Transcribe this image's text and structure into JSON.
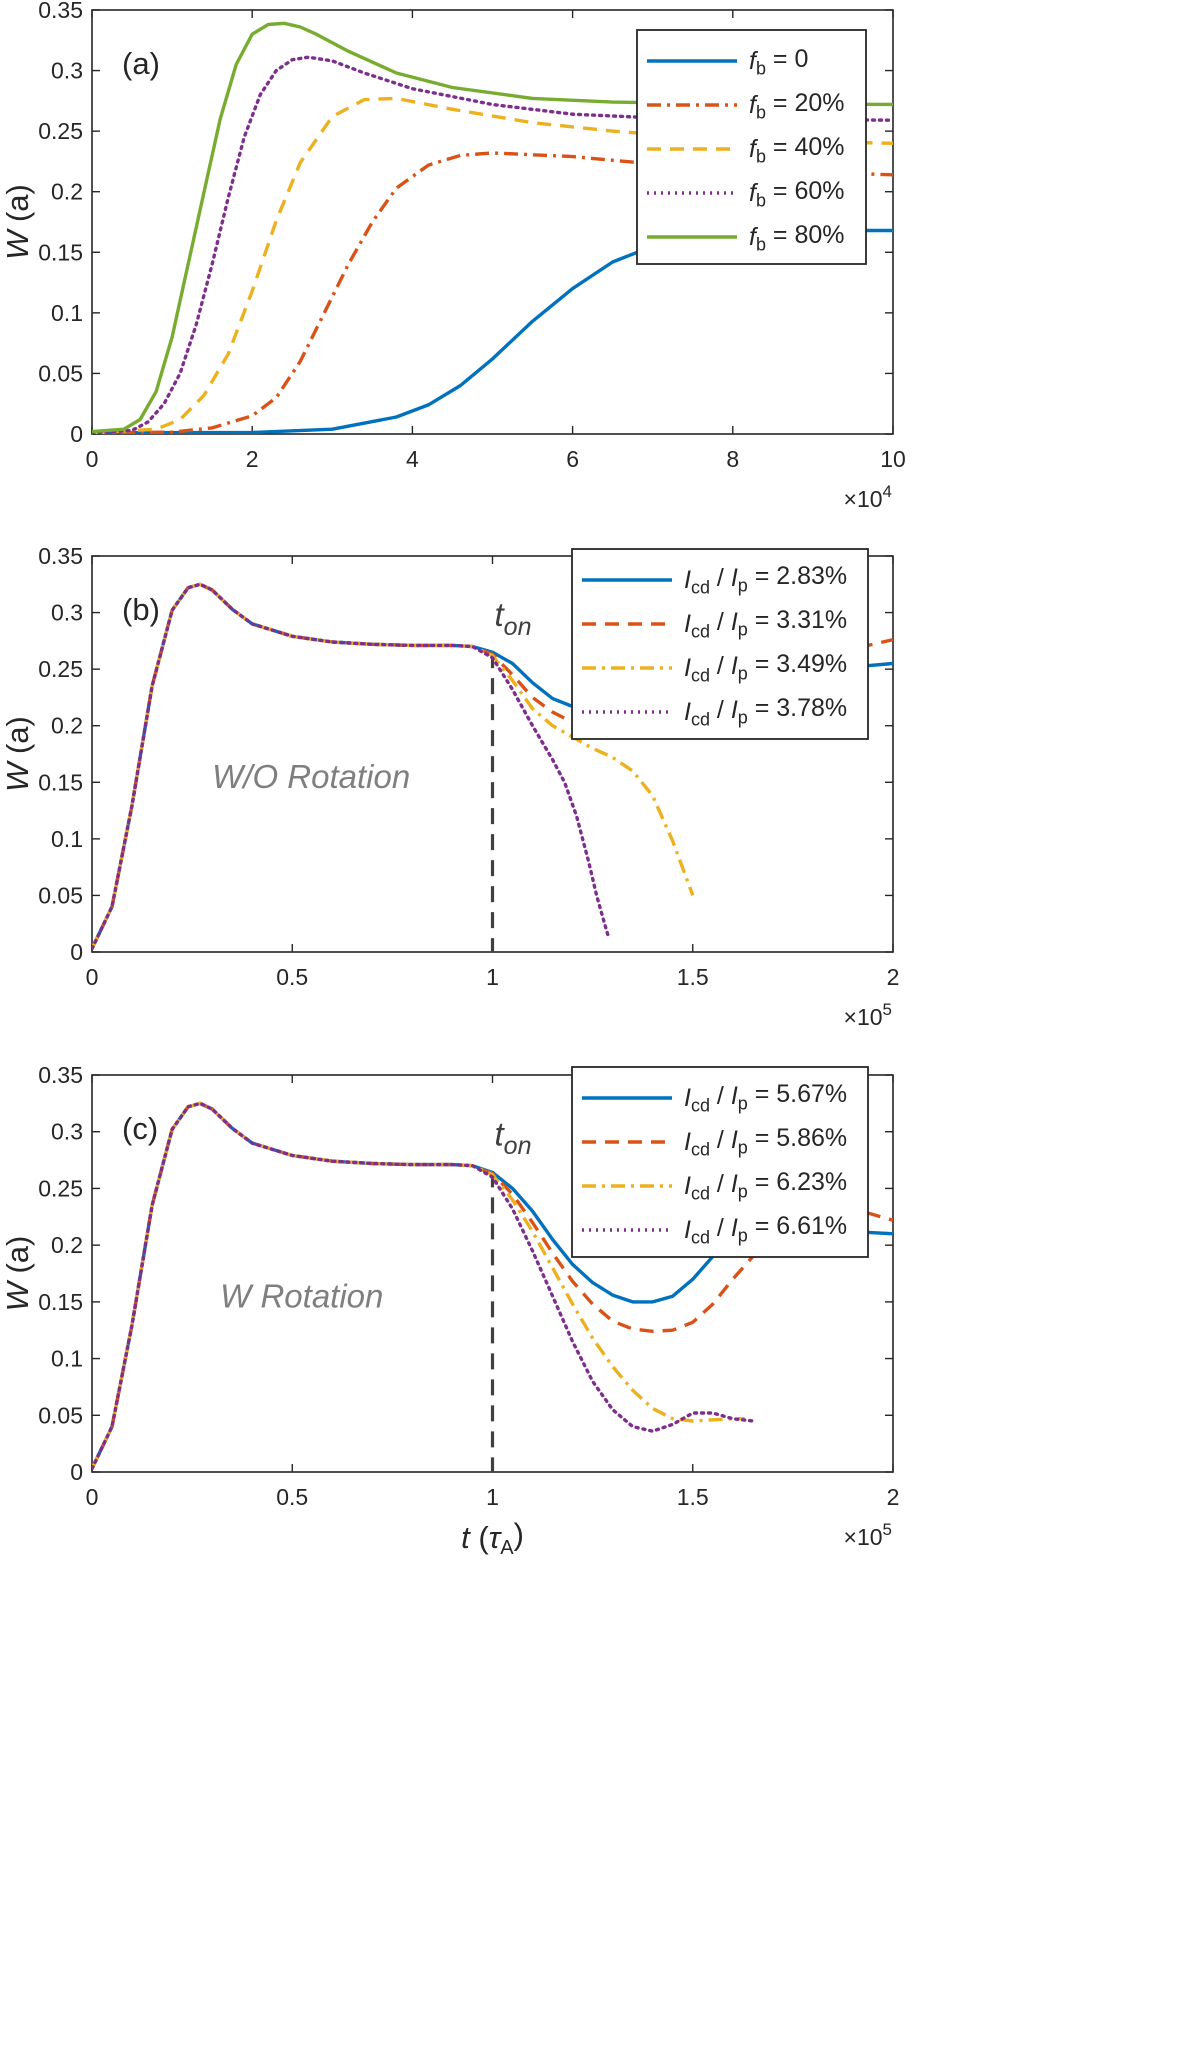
{
  "colors": {
    "blue": "#0072BD",
    "orange": "#D95319",
    "yellow": "#EDB120",
    "purple": "#7E2F8E",
    "green": "#77AC30",
    "marker": "#404040",
    "annotation": "#7f7f7f"
  },
  "chart_data": [
    {
      "type": "line",
      "panel_label": "(a)",
      "ylabel": {
        "sym": "W",
        "rest": " (a)"
      },
      "xlabel": null,
      "x_exponent_label": {
        "base": "×10",
        "exp": "4"
      },
      "xlim": [
        0,
        100000
      ],
      "ylim": [
        0,
        0.35
      ],
      "xticks": [
        0,
        20000,
        40000,
        60000,
        80000,
        100000
      ],
      "xtick_labels": [
        "0",
        "2",
        "4",
        "6",
        "8",
        "10"
      ],
      "yticks": [
        0,
        0.05,
        0.1,
        0.15,
        0.2,
        0.25,
        0.3,
        0.35
      ],
      "ytick_labels": [
        "0",
        "0.05",
        "0.1",
        "0.15",
        "0.2",
        "0.25",
        "0.3",
        "0.35"
      ],
      "legend_position": "top-right",
      "series": [
        {
          "legend": {
            "sym": "f",
            "sub": "b",
            "rest": " = 0"
          },
          "color": "#0072BD",
          "style": "solid",
          "x": [
            0,
            20000,
            30000,
            38000,
            42000,
            46000,
            50000,
            55000,
            60000,
            65000,
            70000,
            75000,
            80000,
            90000,
            100000
          ],
          "y": [
            0.001,
            0.0012,
            0.004,
            0.014,
            0.024,
            0.04,
            0.062,
            0.093,
            0.12,
            0.142,
            0.155,
            0.162,
            0.166,
            0.168,
            0.168
          ]
        },
        {
          "legend": {
            "sym": "f",
            "sub": "b",
            "rest": " = 20%"
          },
          "color": "#D95319",
          "style": "dashdot",
          "x": [
            0,
            10000,
            15000,
            20000,
            23000,
            26000,
            29000,
            32000,
            35000,
            38000,
            42000,
            46000,
            50000,
            60000,
            70000,
            80000,
            90000,
            100000
          ],
          "y": [
            0.001,
            0.0015,
            0.005,
            0.015,
            0.03,
            0.06,
            0.1,
            0.14,
            0.175,
            0.203,
            0.222,
            0.23,
            0.232,
            0.229,
            0.223,
            0.219,
            0.216,
            0.214
          ]
        },
        {
          "legend": {
            "sym": "f",
            "sub": "b",
            "rest": " = 40%"
          },
          "color": "#EDB120",
          "style": "dashed",
          "x": [
            0,
            8000,
            11000,
            14000,
            17000,
            20000,
            23000,
            26000,
            30000,
            34000,
            38000,
            45000,
            55000,
            65000,
            75000,
            85000,
            100000
          ],
          "y": [
            0.001,
            0.004,
            0.012,
            0.032,
            0.066,
            0.118,
            0.176,
            0.224,
            0.262,
            0.276,
            0.277,
            0.268,
            0.257,
            0.25,
            0.245,
            0.242,
            0.24
          ]
        },
        {
          "legend": {
            "sym": "f",
            "sub": "b",
            "rest": " = 60%"
          },
          "color": "#7E2F8E",
          "style": "dotted",
          "x": [
            0,
            5000,
            7000,
            9000,
            11000,
            13000,
            15000,
            17000,
            19000,
            21000,
            23000,
            25000,
            27000,
            30000,
            34000,
            40000,
            50000,
            60000,
            70000,
            80000,
            100000
          ],
          "y": [
            0.001,
            0.003,
            0.01,
            0.025,
            0.05,
            0.09,
            0.14,
            0.195,
            0.245,
            0.28,
            0.3,
            0.309,
            0.311,
            0.308,
            0.298,
            0.285,
            0.272,
            0.264,
            0.261,
            0.26,
            0.259
          ]
        },
        {
          "legend": {
            "sym": "f",
            "sub": "b",
            "rest": " = 80%"
          },
          "color": "#77AC30",
          "style": "solid",
          "x": [
            0,
            4000,
            6000,
            8000,
            10000,
            12000,
            14000,
            16000,
            18000,
            20000,
            22000,
            24000,
            26000,
            28000,
            32000,
            38000,
            45000,
            55000,
            65000,
            75000,
            100000
          ],
          "y": [
            0.002,
            0.004,
            0.012,
            0.035,
            0.08,
            0.14,
            0.2,
            0.26,
            0.305,
            0.33,
            0.338,
            0.339,
            0.336,
            0.33,
            0.316,
            0.298,
            0.286,
            0.277,
            0.274,
            0.273,
            0.272
          ]
        }
      ]
    },
    {
      "type": "line",
      "panel_label": "(b)",
      "ylabel": {
        "sym": "W",
        "rest": " (a)"
      },
      "xlabel": null,
      "x_exponent_label": {
        "base": "×10",
        "exp": "5"
      },
      "xlim": [
        0,
        200000
      ],
      "ylim": [
        0,
        0.35
      ],
      "xticks": [
        0,
        50000,
        100000,
        150000,
        200000
      ],
      "xtick_labels": [
        "0",
        "0.5",
        "1",
        "1.5",
        "2"
      ],
      "yticks": [
        0,
        0.05,
        0.1,
        0.15,
        0.2,
        0.25,
        0.3,
        0.35
      ],
      "ytick_labels": [
        "0",
        "0.05",
        "0.1",
        "0.15",
        "0.2",
        "0.25",
        "0.3",
        "0.35"
      ],
      "legend_position": "top-right",
      "annotation": "W/O Rotation",
      "vline": {
        "x": 100000,
        "label": {
          "sym": "t",
          "sub": "on"
        }
      },
      "series": [
        {
          "legend": {
            "sym": "I",
            "sub": "cd",
            "mid": " / ",
            "sym2": "I",
            "sub2": "p",
            "rest": " = 2.83%"
          },
          "color": "#0072BD",
          "style": "solid",
          "x": [
            0,
            5000,
            10000,
            15000,
            20000,
            24000,
            27000,
            30000,
            35000,
            40000,
            50000,
            60000,
            70000,
            80000,
            90000,
            95000,
            100000,
            105000,
            110000,
            115000,
            120000,
            125000,
            130000,
            140000,
            150000,
            160000,
            170000,
            180000,
            190000,
            200000
          ],
          "y": [
            0.003,
            0.04,
            0.13,
            0.235,
            0.302,
            0.322,
            0.325,
            0.32,
            0.303,
            0.29,
            0.279,
            0.274,
            0.272,
            0.271,
            0.271,
            0.27,
            0.265,
            0.255,
            0.238,
            0.224,
            0.217,
            0.218,
            0.222,
            0.23,
            0.237,
            0.242,
            0.246,
            0.249,
            0.252,
            0.255
          ]
        },
        {
          "legend": {
            "sym": "I",
            "sub": "cd",
            "mid": " / ",
            "sym2": "I",
            "sub2": "p",
            "rest": " = 3.31%"
          },
          "color": "#D95319",
          "style": "dashed",
          "x": [
            0,
            5000,
            10000,
            15000,
            20000,
            24000,
            27000,
            30000,
            35000,
            40000,
            50000,
            60000,
            70000,
            80000,
            90000,
            95000,
            100000,
            105000,
            110000,
            115000,
            120000,
            125000,
            130000,
            140000,
            150000,
            160000,
            170000,
            180000,
            190000,
            200000
          ],
          "y": [
            0.003,
            0.04,
            0.13,
            0.235,
            0.302,
            0.322,
            0.325,
            0.32,
            0.303,
            0.29,
            0.279,
            0.274,
            0.272,
            0.271,
            0.271,
            0.27,
            0.263,
            0.245,
            0.225,
            0.212,
            0.203,
            0.2,
            0.205,
            0.218,
            0.232,
            0.245,
            0.255,
            0.262,
            0.268,
            0.276
          ]
        },
        {
          "legend": {
            "sym": "I",
            "sub": "cd",
            "mid": " / ",
            "sym2": "I",
            "sub2": "p",
            "rest": " = 3.49%"
          },
          "color": "#EDB120",
          "style": "dashdot",
          "x": [
            0,
            5000,
            10000,
            15000,
            20000,
            24000,
            27000,
            30000,
            35000,
            40000,
            50000,
            60000,
            70000,
            80000,
            90000,
            95000,
            100000,
            105000,
            110000,
            115000,
            120000,
            125000,
            130000,
            135000,
            140000,
            145000,
            150000
          ],
          "y": [
            0.003,
            0.04,
            0.13,
            0.235,
            0.302,
            0.322,
            0.325,
            0.32,
            0.303,
            0.29,
            0.279,
            0.274,
            0.272,
            0.271,
            0.271,
            0.27,
            0.262,
            0.24,
            0.215,
            0.2,
            0.19,
            0.18,
            0.172,
            0.16,
            0.138,
            0.098,
            0.05
          ]
        },
        {
          "legend": {
            "sym": "I",
            "sub": "cd",
            "mid": " / ",
            "sym2": "I",
            "sub2": "p",
            "rest": " = 3.78%"
          },
          "color": "#7E2F8E",
          "style": "dotted",
          "x": [
            0,
            5000,
            10000,
            15000,
            20000,
            24000,
            27000,
            30000,
            35000,
            40000,
            50000,
            60000,
            70000,
            80000,
            90000,
            95000,
            100000,
            105000,
            110000,
            115000,
            118000,
            121000,
            124000,
            126000,
            128000,
            129000
          ],
          "y": [
            0.003,
            0.04,
            0.13,
            0.235,
            0.302,
            0.322,
            0.325,
            0.32,
            0.303,
            0.29,
            0.279,
            0.274,
            0.272,
            0.271,
            0.271,
            0.27,
            0.26,
            0.232,
            0.2,
            0.17,
            0.15,
            0.12,
            0.08,
            0.05,
            0.025,
            0.013
          ]
        }
      ]
    },
    {
      "type": "line",
      "panel_label": "(c)",
      "ylabel": {
        "sym": "W",
        "rest": " (a)"
      },
      "xlabel": {
        "sym": "t",
        "mid": " (",
        "greek": "τ",
        "sub": "A",
        "rest": ")"
      },
      "x_exponent_label": {
        "base": "×10",
        "exp": "5"
      },
      "xlim": [
        0,
        200000
      ],
      "ylim": [
        0,
        0.35
      ],
      "xticks": [
        0,
        50000,
        100000,
        150000,
        200000
      ],
      "xtick_labels": [
        "0",
        "0.5",
        "1",
        "1.5",
        "2"
      ],
      "yticks": [
        0,
        0.05,
        0.1,
        0.15,
        0.2,
        0.25,
        0.3,
        0.35
      ],
      "ytick_labels": [
        "0",
        "0.05",
        "0.1",
        "0.15",
        "0.2",
        "0.25",
        "0.3",
        "0.35"
      ],
      "legend_position": "top-right",
      "annotation": "W Rotation",
      "vline": {
        "x": 100000,
        "label": {
          "sym": "t",
          "sub": "on"
        }
      },
      "series": [
        {
          "legend": {
            "sym": "I",
            "sub": "cd",
            "mid": " / ",
            "sym2": "I",
            "sub2": "p",
            "rest": " = 5.67%"
          },
          "color": "#0072BD",
          "style": "solid",
          "x": [
            0,
            5000,
            10000,
            15000,
            20000,
            24000,
            27000,
            30000,
            35000,
            40000,
            50000,
            60000,
            70000,
            80000,
            90000,
            95000,
            100000,
            105000,
            110000,
            115000,
            120000,
            125000,
            130000,
            135000,
            140000,
            145000,
            150000,
            155000,
            165000,
            175000,
            185000,
            195000,
            200000
          ],
          "y": [
            0.003,
            0.04,
            0.13,
            0.235,
            0.302,
            0.322,
            0.325,
            0.32,
            0.303,
            0.29,
            0.279,
            0.274,
            0.272,
            0.271,
            0.271,
            0.27,
            0.264,
            0.25,
            0.23,
            0.205,
            0.183,
            0.167,
            0.156,
            0.15,
            0.15,
            0.155,
            0.17,
            0.19,
            0.21,
            0.215,
            0.213,
            0.211,
            0.21
          ]
        },
        {
          "legend": {
            "sym": "I",
            "sub": "cd",
            "mid": " / ",
            "sym2": "I",
            "sub2": "p",
            "rest": " = 5.86%"
          },
          "color": "#D95319",
          "style": "dashed",
          "x": [
            0,
            5000,
            10000,
            15000,
            20000,
            24000,
            27000,
            30000,
            35000,
            40000,
            50000,
            60000,
            70000,
            80000,
            90000,
            95000,
            100000,
            105000,
            110000,
            115000,
            120000,
            125000,
            130000,
            135000,
            140000,
            145000,
            150000,
            155000,
            160000,
            170000,
            180000,
            190000,
            200000
          ],
          "y": [
            0.003,
            0.04,
            0.13,
            0.235,
            0.302,
            0.322,
            0.325,
            0.32,
            0.303,
            0.29,
            0.279,
            0.274,
            0.272,
            0.271,
            0.271,
            0.27,
            0.263,
            0.245,
            0.22,
            0.193,
            0.168,
            0.148,
            0.133,
            0.126,
            0.124,
            0.125,
            0.132,
            0.148,
            0.17,
            0.21,
            0.232,
            0.232,
            0.222
          ]
        },
        {
          "legend": {
            "sym": "I",
            "sub": "cd",
            "mid": " / ",
            "sym2": "I",
            "sub2": "p",
            "rest": " = 6.23%"
          },
          "color": "#EDB120",
          "style": "dashdot",
          "x": [
            0,
            5000,
            10000,
            15000,
            20000,
            24000,
            27000,
            30000,
            35000,
            40000,
            50000,
            60000,
            70000,
            80000,
            90000,
            95000,
            100000,
            105000,
            110000,
            115000,
            120000,
            125000,
            130000,
            135000,
            140000,
            145000,
            150000,
            155000,
            160000,
            163000
          ],
          "y": [
            0.003,
            0.04,
            0.13,
            0.235,
            0.302,
            0.322,
            0.325,
            0.32,
            0.303,
            0.29,
            0.279,
            0.274,
            0.272,
            0.271,
            0.271,
            0.27,
            0.262,
            0.24,
            0.212,
            0.18,
            0.148,
            0.118,
            0.093,
            0.072,
            0.056,
            0.047,
            0.045,
            0.046,
            0.047,
            0.047
          ]
        },
        {
          "legend": {
            "sym": "I",
            "sub": "cd",
            "mid": " / ",
            "sym2": "I",
            "sub2": "p",
            "rest": " = 6.61%"
          },
          "color": "#7E2F8E",
          "style": "dotted",
          "x": [
            0,
            5000,
            10000,
            15000,
            20000,
            24000,
            27000,
            30000,
            35000,
            40000,
            50000,
            60000,
            70000,
            80000,
            90000,
            95000,
            100000,
            105000,
            110000,
            115000,
            120000,
            125000,
            130000,
            135000,
            140000,
            145000,
            150000,
            155000,
            160000,
            165000
          ],
          "y": [
            0.003,
            0.04,
            0.13,
            0.235,
            0.302,
            0.322,
            0.325,
            0.32,
            0.303,
            0.29,
            0.279,
            0.274,
            0.272,
            0.271,
            0.271,
            0.27,
            0.26,
            0.232,
            0.195,
            0.155,
            0.115,
            0.08,
            0.055,
            0.04,
            0.036,
            0.042,
            0.052,
            0.052,
            0.047,
            0.045
          ]
        }
      ]
    }
  ]
}
